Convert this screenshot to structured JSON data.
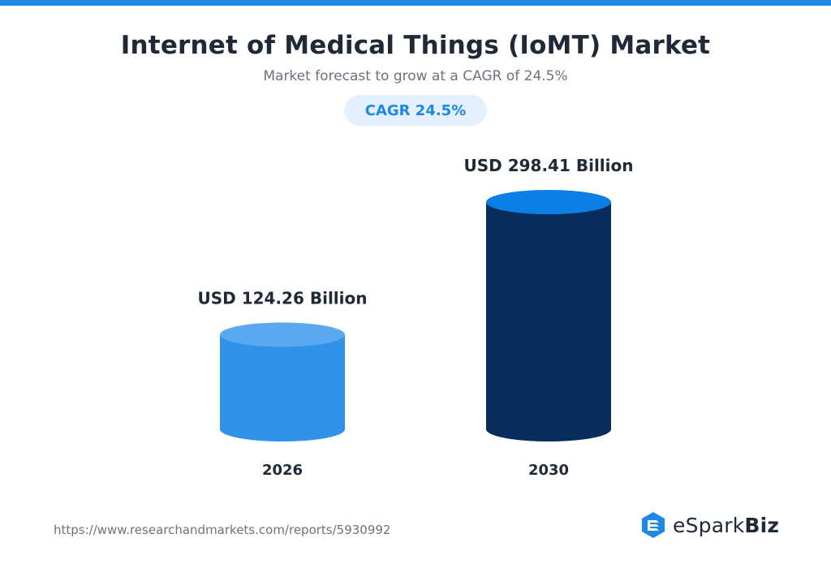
{
  "colors": {
    "accent": "#1e88e5",
    "badge_bg": "#e3f0fd",
    "badge_text": "#1e88e5",
    "text_dark": "#1f2937",
    "bar_2026_body": "#2f93ea",
    "bar_2026_top": "#5aa9f0",
    "bar_2030_body": "#062d5c",
    "bar_2030_top": "#0c7fe6"
  },
  "header": {
    "title": "Internet of Medical Things (IoMT) Market",
    "subtitle": "Market forecast to grow at a CAGR of 24.5%",
    "badge": "CAGR 24.5%"
  },
  "chart_data": {
    "type": "bar",
    "title": "Internet of Medical Things (IoMT) Market",
    "subtitle": "Market forecast to grow at a CAGR of 24.5%",
    "categories": [
      "2026",
      "2030"
    ],
    "values": [
      124.26,
      298.41
    ],
    "data_labels": [
      "USD 124.26 Billion",
      "USD 298.41 Billion"
    ],
    "unit": "USD Billion",
    "xlabel": "",
    "ylabel": "",
    "ylim": [
      0,
      298.41
    ],
    "grid": false,
    "legend": "none"
  },
  "footer": {
    "source": "https://www.researchandmarkets.com/reports/5930992",
    "logo_regular": "eSpark",
    "logo_bold": "Biz",
    "logo_icon": "espark-logo-icon"
  }
}
